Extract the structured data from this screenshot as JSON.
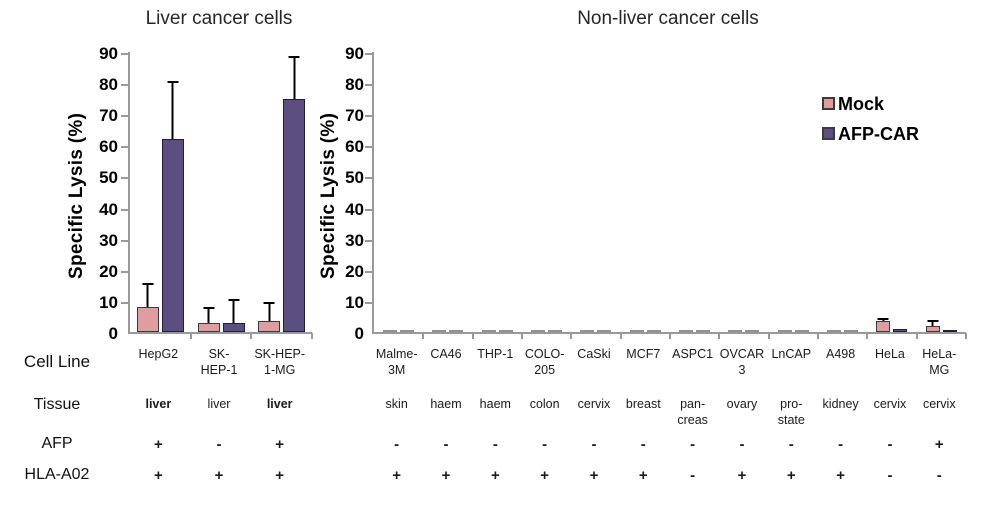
{
  "row_labels": [
    "Cell Line",
    "Tissue",
    "AFP",
    "HLA-A02"
  ],
  "legend": {
    "items": [
      {
        "label": "Mock",
        "color": "#e09da0",
        "border": "#3b3b3b"
      },
      {
        "label": "AFP-CAR",
        "color": "#5c4e80",
        "border": "#221e38"
      }
    ]
  },
  "axis_color": "#999999",
  "chart_data": [
    {
      "type": "bar",
      "title": "Liver cancer cells",
      "ylabel": "Specific Lysis (%)",
      "ylim": [
        0,
        90
      ],
      "yticks": [
        0,
        10,
        20,
        30,
        40,
        50,
        60,
        70,
        80,
        90
      ],
      "grid": false,
      "categories": [
        "HepG2",
        "SK-HEP-1",
        "SK-HEP-1-MG"
      ],
      "category_labels": [
        "HepG2",
        "SK-\nHEP-1",
        "SK-HEP-\n1-MG"
      ],
      "series": [
        {
          "name": "Mock",
          "color": "#e09da0",
          "border": "#3b3b3b",
          "values": [
            8,
            3,
            3.5
          ],
          "errors": [
            7,
            4.5,
            5.5
          ]
        },
        {
          "name": "AFP-CAR",
          "color": "#5c4e80",
          "border": "#221e38",
          "values": [
            62,
            3,
            75
          ],
          "errors": [
            18,
            7,
            13
          ]
        }
      ],
      "tissue": [
        "liver",
        "liver",
        "liver"
      ],
      "tissue_bold": [
        true,
        false,
        true
      ],
      "afp": [
        "+",
        "-",
        "+"
      ],
      "hla_a02": [
        "+",
        "+",
        "+"
      ]
    },
    {
      "type": "bar",
      "title": "Non-liver cancer cells",
      "ylabel": "Specific Lysis (%)",
      "ylim": [
        0,
        90
      ],
      "yticks": [
        0,
        10,
        20,
        30,
        40,
        50,
        60,
        70,
        80,
        90
      ],
      "grid": false,
      "legend_position": "right",
      "categories": [
        "Malme-3M",
        "CA46",
        "THP-1",
        "COLO-205",
        "CaSki",
        "MCF7",
        "ASPC1",
        "OVCAR 3",
        "LnCAP",
        "A498",
        "HeLa",
        "HeLa-MG"
      ],
      "category_labels": [
        "Malme-\n3M",
        "CA46",
        "THP-1",
        "COLO-\n205",
        "CaSki",
        "MCF7",
        "ASPC1",
        "OVCAR\n3",
        "LnCAP",
        "A498",
        "HeLa",
        "HeLa-\nMG"
      ],
      "series": [
        {
          "name": "Mock",
          "color": "#e09da0",
          "border": "#3b3b3b",
          "values": [
            0,
            0,
            0,
            0,
            0,
            0,
            0,
            0,
            0,
            0,
            3.5,
            2
          ],
          "errors": [
            0,
            0,
            0,
            0,
            0,
            0,
            0,
            0,
            0,
            0,
            0.5,
            1.2
          ]
        },
        {
          "name": "AFP-CAR",
          "color": "#5c4e80",
          "border": "#221e38",
          "values": [
            0,
            0,
            0,
            0,
            0,
            0,
            0,
            0,
            0,
            0,
            1,
            0.5
          ],
          "errors": [
            0,
            0,
            0,
            0,
            0,
            0,
            0,
            0,
            0,
            0,
            0,
            0
          ]
        }
      ],
      "tissue": [
        "skin",
        "haem",
        "haem",
        "colon",
        "cervix",
        "breast",
        "pan-\ncreas",
        "ovary",
        "pro-\nstate",
        "kidney",
        "cervix",
        "cervix"
      ],
      "tissue_bold": [
        false,
        false,
        false,
        false,
        false,
        false,
        false,
        false,
        false,
        false,
        false,
        false
      ],
      "afp": [
        "-",
        "-",
        "-",
        "-",
        "-",
        "-",
        "-",
        "-",
        "-",
        "-",
        "-",
        "+"
      ],
      "hla_a02": [
        "+",
        "+",
        "+",
        "+",
        "+",
        "+",
        "-",
        "+",
        "+",
        "+",
        "-",
        "-"
      ]
    }
  ]
}
